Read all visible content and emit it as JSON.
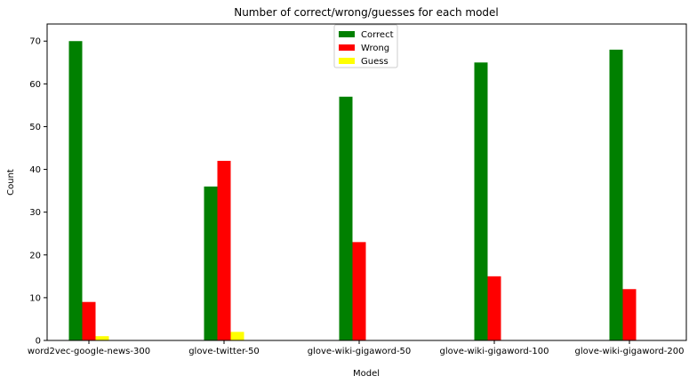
{
  "chart_data": {
    "type": "bar",
    "title": "Number of correct/wrong/guesses for each model",
    "xlabel": "Model",
    "ylabel": "Count",
    "ylim": [
      0,
      74
    ],
    "yticks": [
      0,
      10,
      20,
      30,
      40,
      50,
      60,
      70
    ],
    "categories": [
      "word2vec-google-news-300",
      "glove-twitter-50",
      "glove-wiki-gigaword-50",
      "glove-wiki-gigaword-100",
      "glove-wiki-gigaword-200"
    ],
    "series": [
      {
        "name": "Correct",
        "color": "#008000",
        "values": [
          70,
          36,
          57,
          65,
          68
        ]
      },
      {
        "name": "Wrong",
        "color": "#ff0000",
        "values": [
          9,
          42,
          23,
          15,
          12
        ]
      },
      {
        "name": "Guess",
        "color": "#ffff00",
        "values": [
          1,
          2,
          0,
          0,
          0
        ]
      }
    ],
    "legend": "top-center",
    "grid": false
  }
}
